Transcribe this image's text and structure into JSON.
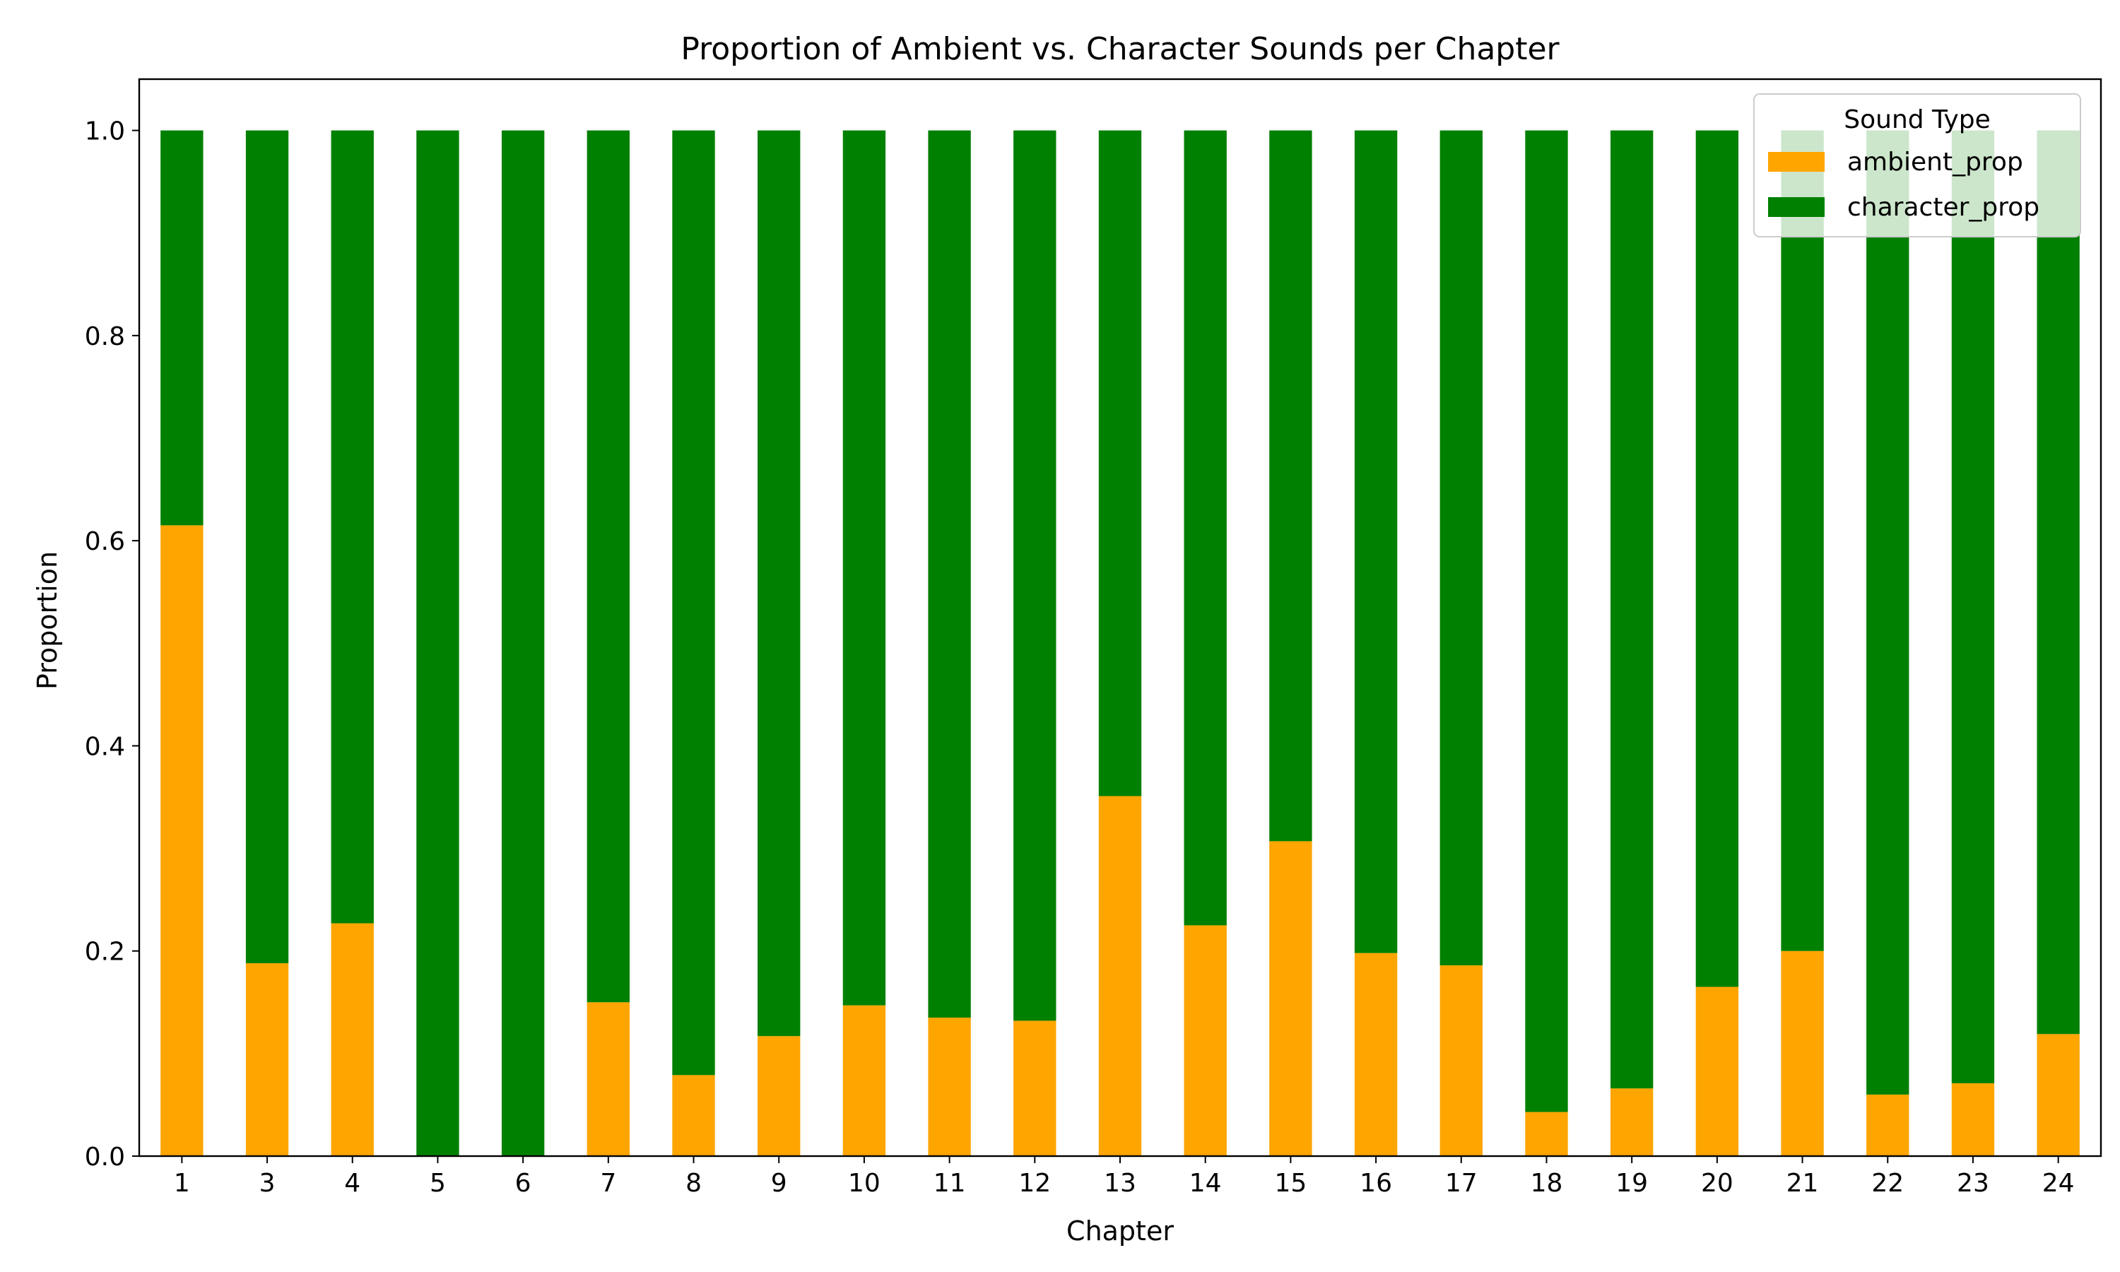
{
  "chart_data": {
    "type": "bar",
    "stacked": true,
    "title": "Proportion of Ambient vs. Character Sounds per Chapter",
    "xlabel": "Chapter",
    "ylabel": "Proportion",
    "ylim": [
      0,
      1.05
    ],
    "yticks": [
      "0.0",
      "0.2",
      "0.4",
      "0.6",
      "0.8",
      "1.0"
    ],
    "categories": [
      "1",
      "3",
      "4",
      "5",
      "6",
      "7",
      "8",
      "9",
      "10",
      "11",
      "12",
      "13",
      "14",
      "15",
      "16",
      "17",
      "18",
      "19",
      "20",
      "21",
      "22",
      "23",
      "24"
    ],
    "series": [
      {
        "name": "ambient_prop",
        "color": "#ffa500",
        "values": [
          0.615,
          0.188,
          0.227,
          0.0,
          0.0,
          0.15,
          0.079,
          0.117,
          0.147,
          0.135,
          0.132,
          0.351,
          0.225,
          0.307,
          0.198,
          0.186,
          0.043,
          0.066,
          0.165,
          0.2,
          0.06,
          0.071,
          0.119
        ]
      },
      {
        "name": "character_prop",
        "color": "#008000",
        "values": [
          0.385,
          0.812,
          0.773,
          1.0,
          1.0,
          0.85,
          0.921,
          0.883,
          0.853,
          0.865,
          0.868,
          0.649,
          0.775,
          0.693,
          0.802,
          0.814,
          0.957,
          0.934,
          0.835,
          0.8,
          0.94,
          0.929,
          0.881
        ]
      }
    ],
    "legend": {
      "title": "Sound Type",
      "position": "top-right"
    },
    "grid": false
  }
}
